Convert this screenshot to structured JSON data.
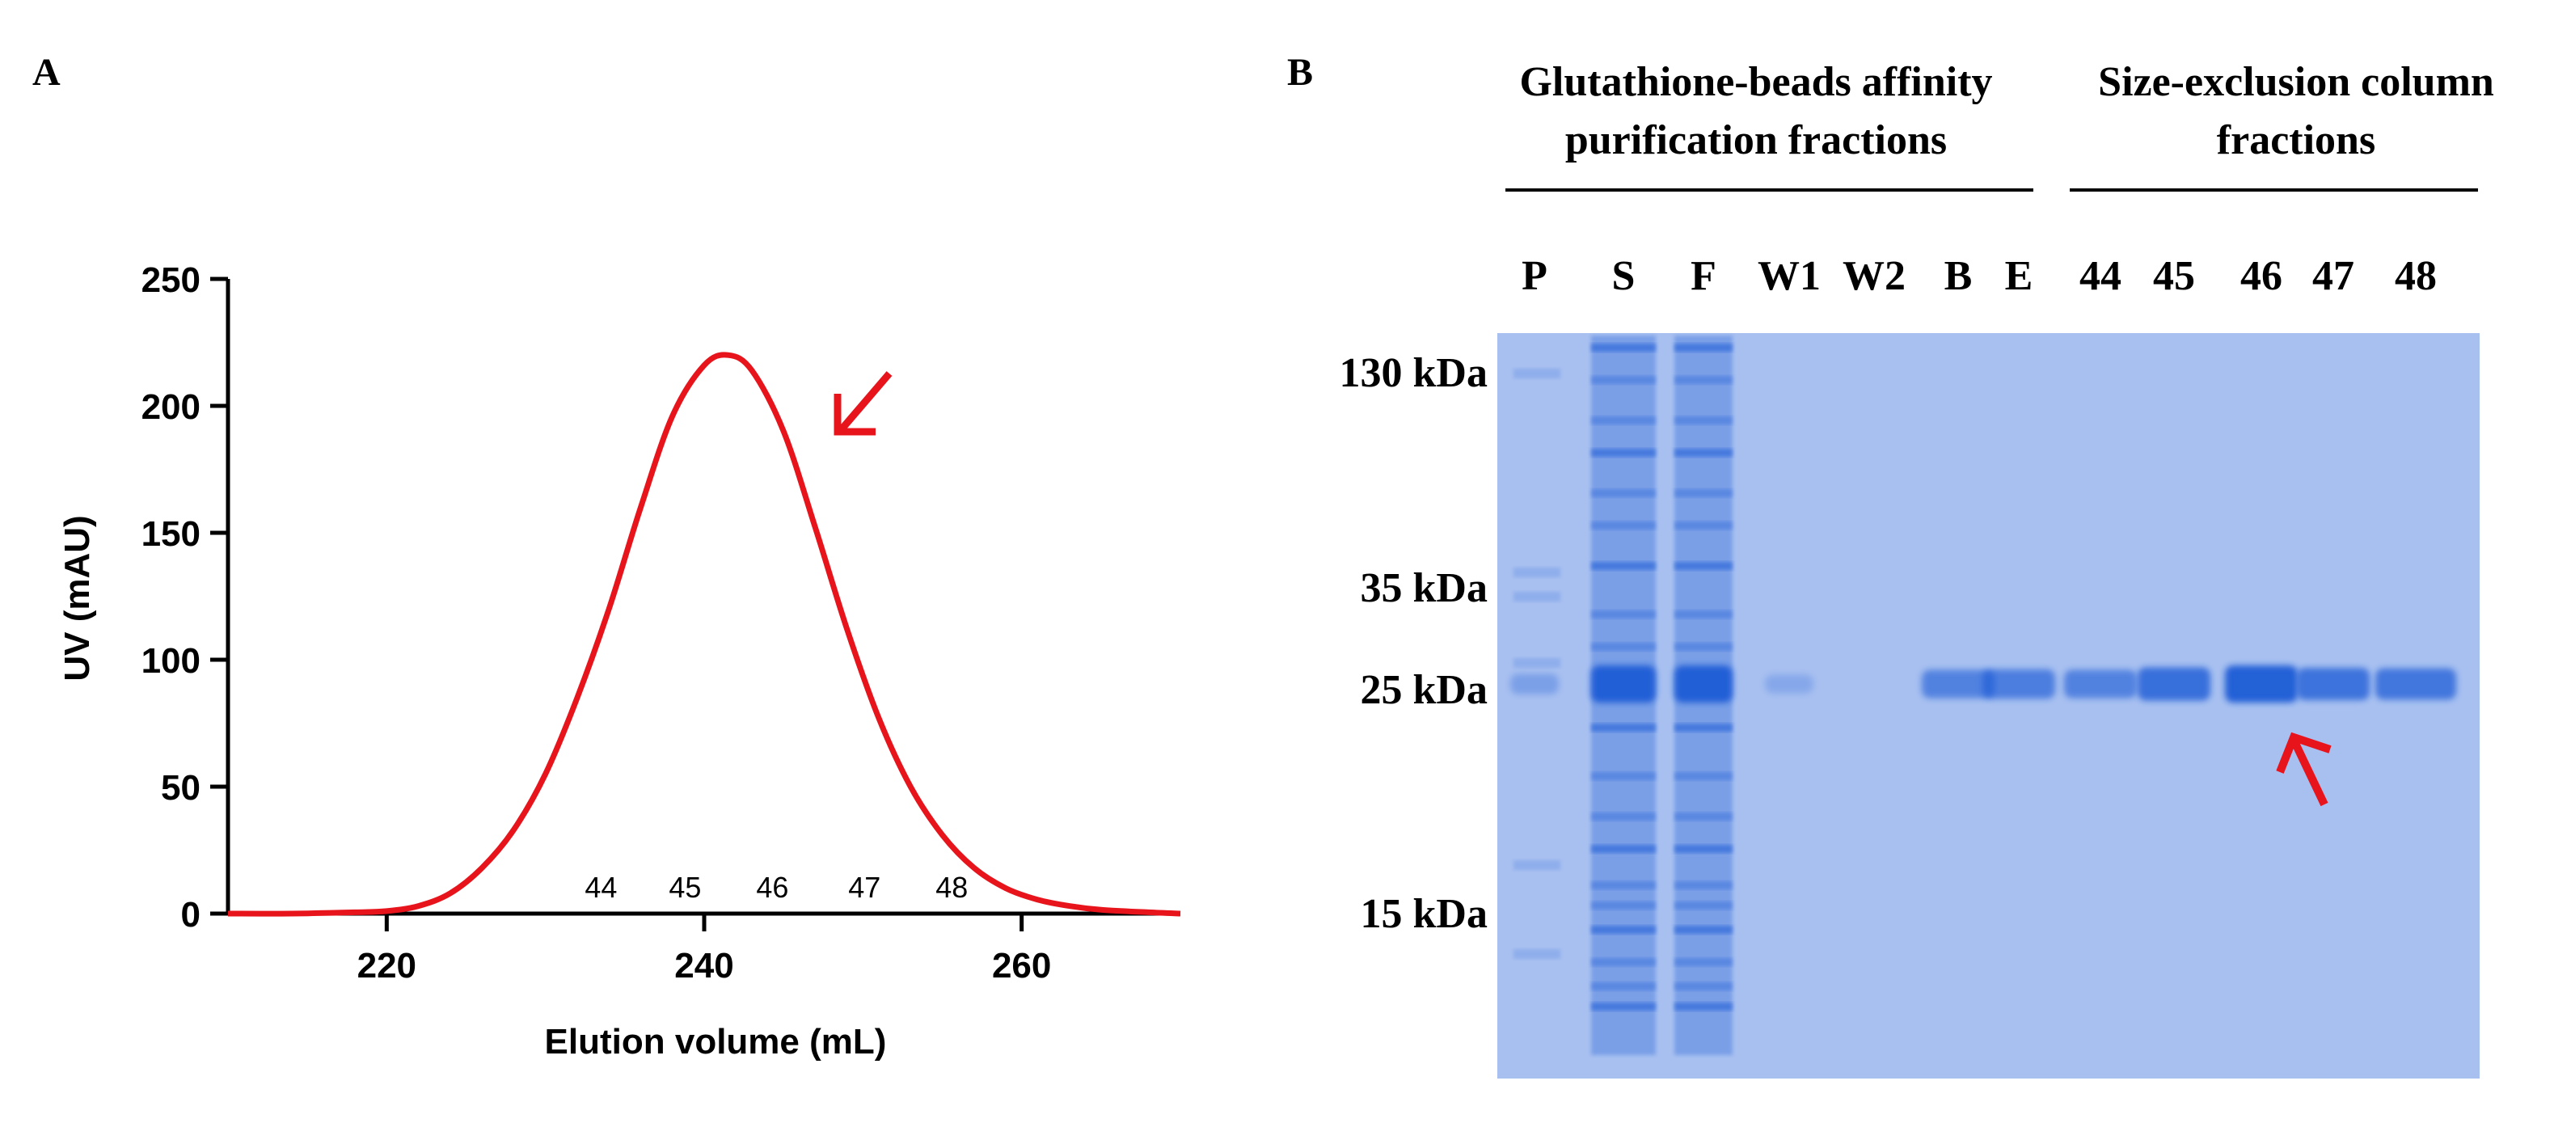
{
  "panel_a_label": "A",
  "panel_b_label": "B",
  "chart_data": {
    "type": "line",
    "title": "",
    "xlabel": "Elution volume (mL)",
    "ylabel": "UV (mAU)",
    "xlim": [
      210,
      270
    ],
    "ylim": [
      0,
      250
    ],
    "x_ticks": [
      220,
      240,
      260
    ],
    "y_ticks": [
      0,
      50,
      100,
      150,
      200,
      250
    ],
    "grid": false,
    "series": [
      {
        "color": "#e8141c",
        "x": [
          210,
          214,
          218,
          220,
          222,
          224,
          226,
          228,
          230,
          232,
          234,
          236,
          238,
          240,
          241.5,
          243,
          245,
          247,
          249,
          251,
          253,
          255,
          257,
          259,
          261,
          263,
          265,
          268,
          270
        ],
        "y": [
          0,
          0,
          0.5,
          1,
          3,
          8,
          18,
          33,
          55,
          85,
          120,
          160,
          196,
          216,
          220,
          214,
          190,
          152,
          112,
          77,
          50,
          31,
          18,
          10,
          5.5,
          3,
          1.5,
          0.5,
          0
        ]
      }
    ],
    "fraction_labels": [
      {
        "label": "44",
        "x": 233.5
      },
      {
        "label": "45",
        "x": 238.8
      },
      {
        "label": "46",
        "x": 244.3
      },
      {
        "label": "47",
        "x": 250.1
      },
      {
        "label": "48",
        "x": 255.6
      }
    ],
    "annotation_arrow_color": "#e8141c"
  },
  "gel": {
    "group_affinity": [
      "Glutathione-beads affinity",
      "purification fractions"
    ],
    "group_sec": [
      "Size-exclusion column",
      "fractions"
    ],
    "lanes": [
      "P",
      "S",
      "F",
      "W1",
      "W2",
      "B",
      "E",
      "44",
      "45",
      "46",
      "47",
      "48"
    ],
    "markers": [
      "130 kDa",
      "35 kDa",
      "25 kDa",
      "15 kDa"
    ],
    "band_25kda_intensity": [
      0.15,
      1.0,
      1.0,
      0.05,
      0.0,
      0.55,
      0.6,
      0.55,
      0.8,
      1.0,
      0.75,
      0.7
    ],
    "gel_background": "#a8c0f0",
    "band_color": "#1f5bd6",
    "arrow_color": "#e8141c"
  }
}
